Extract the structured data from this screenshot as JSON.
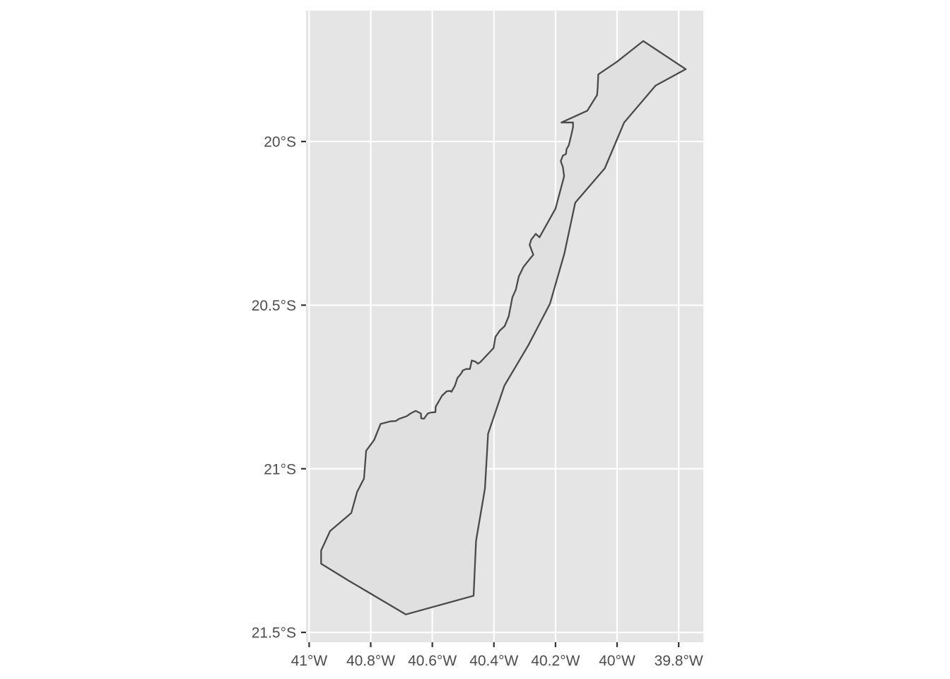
{
  "chart_data": {
    "type": "map",
    "title": "",
    "xlabel": "",
    "ylabel": "",
    "xlim": [
      -41.01,
      -39.72
    ],
    "ylim": [
      -21.53,
      -19.6
    ],
    "x_ticks": [
      {
        "value": -41.0,
        "label": "41°W"
      },
      {
        "value": -40.8,
        "label": "40.8°W"
      },
      {
        "value": -40.6,
        "label": "40.6°W"
      },
      {
        "value": -40.4,
        "label": "40.4°W"
      },
      {
        "value": -40.2,
        "label": "40.2°W"
      },
      {
        "value": -40.0,
        "label": "40°W"
      },
      {
        "value": -39.8,
        "label": "39.8°W"
      }
    ],
    "y_ticks": [
      {
        "value": -20.0,
        "label": "20°S"
      },
      {
        "value": -20.5,
        "label": "20.5°S"
      },
      {
        "value": -21.0,
        "label": "21°S"
      },
      {
        "value": -21.5,
        "label": "21.5°S"
      }
    ],
    "grid": true,
    "polygon": {
      "fill": "#e0e0e0",
      "stroke": "#4a4a4a",
      "coordinates": [
        [
          -39.915,
          -19.693
        ],
        [
          -39.777,
          -19.779
        ],
        [
          -39.875,
          -19.829
        ],
        [
          -39.977,
          -19.942
        ],
        [
          -40.04,
          -20.082
        ],
        [
          -40.136,
          -20.187
        ],
        [
          -40.171,
          -20.342
        ],
        [
          -40.218,
          -20.496
        ],
        [
          -40.289,
          -20.624
        ],
        [
          -40.366,
          -20.746
        ],
        [
          -40.419,
          -20.893
        ],
        [
          -40.429,
          -21.06
        ],
        [
          -40.458,
          -21.22
        ],
        [
          -40.466,
          -21.388
        ],
        [
          -40.686,
          -21.445
        ],
        [
          -40.873,
          -21.341
        ],
        [
          -40.961,
          -21.29
        ],
        [
          -40.961,
          -21.25
        ],
        [
          -40.932,
          -21.19
        ],
        [
          -40.863,
          -21.135
        ],
        [
          -40.844,
          -21.07
        ],
        [
          -40.822,
          -21.03
        ],
        [
          -40.815,
          -20.945
        ],
        [
          -40.789,
          -20.912
        ],
        [
          -40.768,
          -20.863
        ],
        [
          -40.736,
          -20.855
        ],
        [
          -40.718,
          -20.854
        ],
        [
          -40.709,
          -20.848
        ],
        [
          -40.683,
          -20.839
        ],
        [
          -40.669,
          -20.83
        ],
        [
          -40.654,
          -20.823
        ],
        [
          -40.637,
          -20.831
        ],
        [
          -40.636,
          -20.846
        ],
        [
          -40.627,
          -20.847
        ],
        [
          -40.615,
          -20.831
        ],
        [
          -40.604,
          -20.828
        ],
        [
          -40.59,
          -20.827
        ],
        [
          -40.589,
          -20.81
        ],
        [
          -40.568,
          -20.776
        ],
        [
          -40.553,
          -20.763
        ],
        [
          -40.541,
          -20.762
        ],
        [
          -40.538,
          -20.765
        ],
        [
          -40.527,
          -20.747
        ],
        [
          -40.518,
          -20.722
        ],
        [
          -40.509,
          -20.712
        ],
        [
          -40.503,
          -20.704
        ],
        [
          -40.502,
          -20.7
        ],
        [
          -40.49,
          -20.695
        ],
        [
          -40.478,
          -20.695
        ],
        [
          -40.472,
          -20.669
        ],
        [
          -40.459,
          -20.673
        ],
        [
          -40.452,
          -20.679
        ],
        [
          -40.444,
          -20.674
        ],
        [
          -40.401,
          -20.631
        ],
        [
          -40.395,
          -20.597
        ],
        [
          -40.381,
          -20.578
        ],
        [
          -40.365,
          -20.564
        ],
        [
          -40.352,
          -20.534
        ],
        [
          -40.34,
          -20.476
        ],
        [
          -40.329,
          -20.453
        ],
        [
          -40.319,
          -20.412
        ],
        [
          -40.304,
          -20.383
        ],
        [
          -40.282,
          -20.357
        ],
        [
          -40.272,
          -20.346
        ],
        [
          -40.284,
          -20.316
        ],
        [
          -40.279,
          -20.3
        ],
        [
          -40.264,
          -20.282
        ],
        [
          -40.252,
          -20.293
        ],
        [
          -40.2,
          -20.205
        ],
        [
          -40.172,
          -20.106
        ],
        [
          -40.176,
          -20.078
        ],
        [
          -40.183,
          -20.06
        ],
        [
          -40.176,
          -20.043
        ],
        [
          -40.166,
          -20.038
        ],
        [
          -40.164,
          -20.023
        ],
        [
          -40.157,
          -20.012
        ],
        [
          -40.15,
          -19.985
        ],
        [
          -40.143,
          -19.956
        ],
        [
          -40.143,
          -19.942
        ],
        [
          -40.181,
          -19.942
        ],
        [
          -40.097,
          -19.906
        ],
        [
          -40.065,
          -19.858
        ],
        [
          -40.063,
          -19.834
        ],
        [
          -40.061,
          -19.795
        ],
        [
          -40.0,
          -19.756
        ]
      ]
    }
  }
}
